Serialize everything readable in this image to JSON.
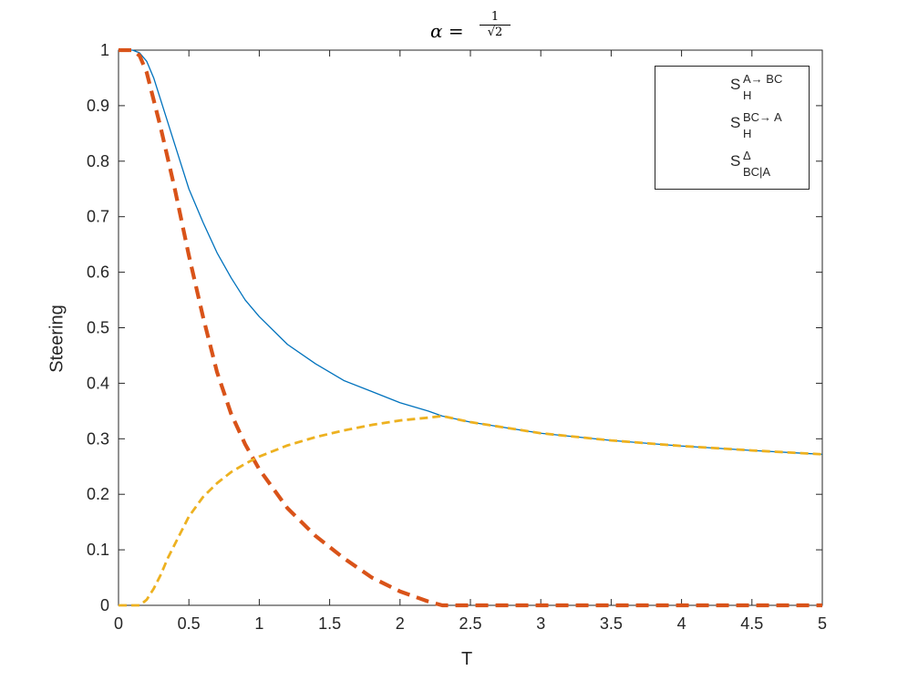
{
  "chart_data": {
    "type": "line",
    "title": "α = 1/√2",
    "title_parts": {
      "lhs": "α =",
      "num": "1",
      "den": "√2"
    },
    "xlabel": "T",
    "ylabel": "Steering",
    "xlim": [
      0,
      5
    ],
    "ylim": [
      0,
      1
    ],
    "xticks": [
      0,
      0.5,
      1,
      1.5,
      2,
      2.5,
      3,
      3.5,
      4,
      4.5,
      5
    ],
    "xtick_labels": [
      "0",
      "0.5",
      "1",
      "1.5",
      "2",
      "2.5",
      "3",
      "3.5",
      "4",
      "4.5",
      "5"
    ],
    "yticks": [
      0,
      0.1,
      0.2,
      0.3,
      0.4,
      0.5,
      0.6,
      0.7,
      0.8,
      0.9,
      1
    ],
    "ytick_labels": [
      "0",
      "0.1",
      "0.2",
      "0.3",
      "0.4",
      "0.5",
      "0.6",
      "0.7",
      "0.8",
      "0.9",
      "1"
    ],
    "grid": false,
    "legend_position": "top-right",
    "series": [
      {
        "name": "S_H^{A→ BC}",
        "legend": {
          "main": "S",
          "sup": "A→ BC",
          "sub": "H"
        },
        "color": "#0072BD",
        "style": "solid",
        "x": [
          0,
          0.1,
          0.15,
          0.2,
          0.25,
          0.3,
          0.35,
          0.4,
          0.45,
          0.5,
          0.6,
          0.7,
          0.8,
          0.9,
          1.0,
          1.2,
          1.4,
          1.6,
          1.8,
          2.0,
          2.2,
          2.3,
          2.5,
          3.0,
          3.5,
          4.0,
          4.5,
          5.0
        ],
        "y": [
          1.0,
          1.0,
          0.995,
          0.98,
          0.95,
          0.91,
          0.87,
          0.83,
          0.79,
          0.75,
          0.69,
          0.635,
          0.59,
          0.55,
          0.52,
          0.47,
          0.435,
          0.405,
          0.385,
          0.365,
          0.35,
          0.341,
          0.33,
          0.31,
          0.297,
          0.287,
          0.279,
          0.272
        ]
      },
      {
        "name": "S_H^{BC→ A}",
        "legend": {
          "main": "S",
          "sup": "BC→ A",
          "sub": "H"
        },
        "color": "#D95319",
        "style": "dashed",
        "x": [
          0,
          0.1,
          0.15,
          0.2,
          0.25,
          0.3,
          0.4,
          0.5,
          0.6,
          0.7,
          0.8,
          0.9,
          1.0,
          1.2,
          1.4,
          1.6,
          1.8,
          2.0,
          2.2,
          2.3,
          2.5,
          3.0,
          3.5,
          4.0,
          4.5,
          5.0
        ],
        "y": [
          1.0,
          1.0,
          0.99,
          0.96,
          0.91,
          0.86,
          0.75,
          0.63,
          0.52,
          0.42,
          0.345,
          0.29,
          0.245,
          0.175,
          0.125,
          0.085,
          0.05,
          0.025,
          0.007,
          0.0,
          0.0,
          0.0,
          0.0,
          0.0,
          0.0,
          0.0
        ]
      },
      {
        "name": "S_{BC|A}^{Δ}",
        "legend": {
          "main": "S",
          "sup": "Δ",
          "sub": "BC|A"
        },
        "color": "#EDB120",
        "style": "dashed",
        "x": [
          0,
          0.15,
          0.2,
          0.25,
          0.3,
          0.35,
          0.4,
          0.5,
          0.6,
          0.7,
          0.8,
          0.9,
          1.0,
          1.2,
          1.4,
          1.6,
          1.8,
          2.0,
          2.2,
          2.3,
          2.5,
          3.0,
          3.5,
          4.0,
          4.5,
          5.0
        ],
        "y": [
          0.0,
          0.0,
          0.01,
          0.03,
          0.055,
          0.085,
          0.11,
          0.16,
          0.195,
          0.22,
          0.24,
          0.255,
          0.268,
          0.288,
          0.303,
          0.315,
          0.325,
          0.333,
          0.338,
          0.341,
          0.33,
          0.31,
          0.297,
          0.287,
          0.279,
          0.272
        ]
      }
    ]
  }
}
